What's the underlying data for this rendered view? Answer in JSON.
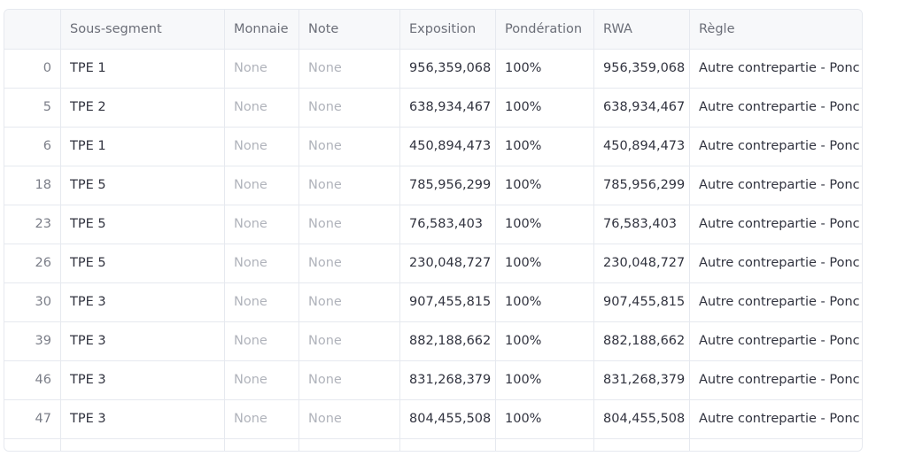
{
  "table": {
    "columns": [
      "",
      "Sous-segment",
      "Monnaie",
      "Note",
      "Exposition",
      "Pondération",
      "RWA",
      "Règle"
    ],
    "rows": [
      {
        "idx": "0",
        "sous_segment": "TPE 1",
        "monnaie": "None",
        "note": "None",
        "exposition": "956,359,068",
        "ponderation": "100%",
        "rwa": "956,359,068",
        "regle": "Autre contrepartie - Ponc"
      },
      {
        "idx": "5",
        "sous_segment": "TPE 2",
        "monnaie": "None",
        "note": "None",
        "exposition": "638,934,467",
        "ponderation": "100%",
        "rwa": "638,934,467",
        "regle": "Autre contrepartie - Ponc"
      },
      {
        "idx": "6",
        "sous_segment": "TPE 1",
        "monnaie": "None",
        "note": "None",
        "exposition": "450,894,473",
        "ponderation": "100%",
        "rwa": "450,894,473",
        "regle": "Autre contrepartie - Ponc"
      },
      {
        "idx": "18",
        "sous_segment": "TPE 5",
        "monnaie": "None",
        "note": "None",
        "exposition": "785,956,299",
        "ponderation": "100%",
        "rwa": "785,956,299",
        "regle": "Autre contrepartie - Ponc"
      },
      {
        "idx": "23",
        "sous_segment": "TPE 5",
        "monnaie": "None",
        "note": "None",
        "exposition": "76,583,403",
        "ponderation": "100%",
        "rwa": "76,583,403",
        "regle": "Autre contrepartie - Ponc"
      },
      {
        "idx": "26",
        "sous_segment": "TPE 5",
        "monnaie": "None",
        "note": "None",
        "exposition": "230,048,727",
        "ponderation": "100%",
        "rwa": "230,048,727",
        "regle": "Autre contrepartie - Ponc"
      },
      {
        "idx": "30",
        "sous_segment": "TPE 3",
        "monnaie": "None",
        "note": "None",
        "exposition": "907,455,815",
        "ponderation": "100%",
        "rwa": "907,455,815",
        "regle": "Autre contrepartie - Ponc"
      },
      {
        "idx": "39",
        "sous_segment": "TPE 3",
        "monnaie": "None",
        "note": "None",
        "exposition": "882,188,662",
        "ponderation": "100%",
        "rwa": "882,188,662",
        "regle": "Autre contrepartie - Ponc"
      },
      {
        "idx": "46",
        "sous_segment": "TPE 3",
        "monnaie": "None",
        "note": "None",
        "exposition": "831,268,379",
        "ponderation": "100%",
        "rwa": "831,268,379",
        "regle": "Autre contrepartie - Ponc"
      },
      {
        "idx": "47",
        "sous_segment": "TPE 3",
        "monnaie": "None",
        "note": "None",
        "exposition": "804,455,508",
        "ponderation": "100%",
        "rwa": "804,455,508",
        "regle": "Autre contrepartie - Ponc"
      }
    ]
  }
}
